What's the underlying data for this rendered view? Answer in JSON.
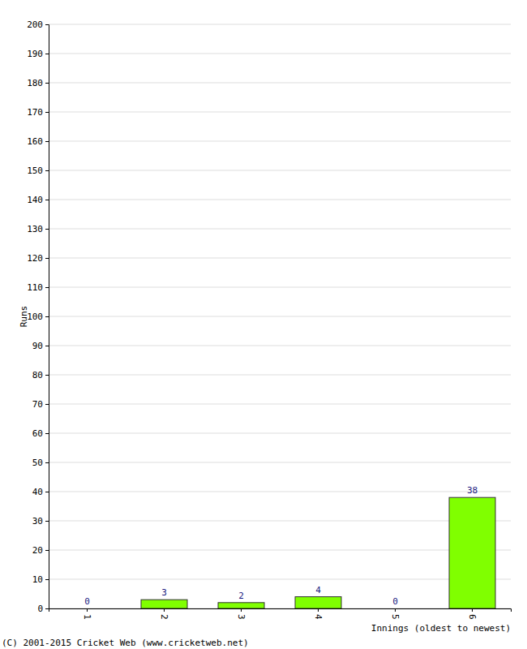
{
  "chart_data": {
    "type": "bar",
    "x_label": "Innings (oldest to newest)",
    "y_label": "Runs",
    "annotations": [
      "(C) 2001-2015 Cricket Web (www.cricketweb.net)"
    ],
    "categories": [
      "1",
      "2",
      "3",
      "4",
      "5",
      "6"
    ],
    "values": [
      0,
      3,
      2,
      4,
      0,
      38
    ],
    "color": "#80ff00",
    "ylim": [
      0,
      200
    ],
    "yticks": [
      0,
      10,
      20,
      30,
      40,
      50,
      60,
      70,
      80,
      90,
      100,
      110,
      120,
      130,
      140,
      150,
      160,
      170,
      180,
      190,
      200
    ],
    "grid": true,
    "data_labels": true
  }
}
